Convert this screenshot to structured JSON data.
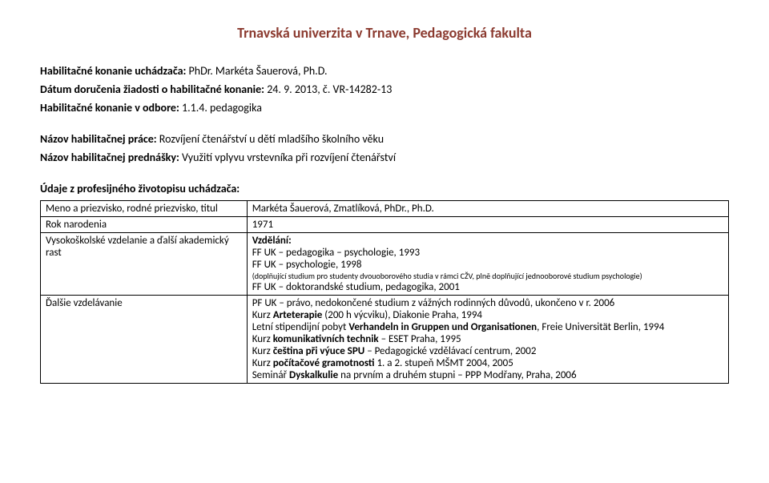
{
  "title": "Trnavská univerzita v Trnave, Pedagogická fakulta",
  "lines": {
    "l1_label": "Habilitačné konanie uchádzača:",
    "l1_value": " PhDr. Markéta Šauerová, Ph.D.",
    "l2_label": "Dátum doručenia žiadosti o habilitačné konanie:",
    "l2_value": " 24. 9. 2013, č. VR-14282-13",
    "l3_label": "Habilitačné konanie v odbore:",
    "l3_value": " 1.1.4. pedagogika",
    "l4_label": "Názov habilitačnej práce:",
    "l4_value": " Rozvíjení čtenářství u dětí mladšího školního věku",
    "l5_label": "Názov habilitačnej prednášky:",
    "l5_value": " Využití vplyvu vrstevníka při rozvíjení čtenářství",
    "l6_label": "Údaje z profesijného životopisu uchádzača:"
  },
  "table": {
    "rows": [
      {
        "label": "Meno a priezvisko, rodné priezvisko, titul",
        "value_lines": [
          {
            "text": "Markéta Šauerová, Zmatlíková, PhDr., Ph.D."
          }
        ]
      },
      {
        "label": "Rok narodenia",
        "value_lines": [
          {
            "text": "1971"
          }
        ]
      },
      {
        "label": "Vysokoškolské vzdelanie a ďalší akademický rast",
        "value_lines": [
          {
            "text": "Vzdělání:",
            "bold": true
          },
          {
            "text": "FF UK – pedagogika – psychologie, 1993"
          },
          {
            "text": "FF UK – psychologie, 1998"
          },
          {
            "text": "(doplňující studium pro studenty dvouoborového studia v rámci CŽV, plně doplňující jednooborové studium psychologie)",
            "small": true
          },
          {
            "text": "FF UK – doktorandské studium, pedagogika, 2001"
          }
        ]
      },
      {
        "label": "Ďalšie vzdelávanie",
        "value_lines": [
          {
            "text": "PF UK – právo, nedokončené studium z vážných rodinných důvodů, ukončeno v r. 2006"
          },
          {
            "prefix": "Kurz ",
            "bold_part": "Arteterapie",
            "suffix": " (200 h výcviku), Diakonie Praha, 1994"
          },
          {
            "prefix": "Letní stipendijní pobyt ",
            "bold_part": "Verhandeln in Gruppen und Organisationen",
            "suffix": ", Freie Universität Berlin, 1994"
          },
          {
            "prefix": "Kurz ",
            "bold_part": "komunikativních technik",
            "suffix": " – ESET Praha, 1995"
          },
          {
            "prefix": "Kurz ",
            "bold_part": "čeština při výuce SPU",
            "suffix": " – Pedagogické vzdělávací centrum, 2002"
          },
          {
            "prefix": "Kurz ",
            "bold_part": "počítačové gramotnosti",
            "suffix": " 1. a 2. stupeň MŠMT 2004, 2005"
          },
          {
            "prefix": "Seminář ",
            "bold_part": "Dyskalkulie",
            "suffix": " na prvním a druhém stupni – PPP Modřany, Praha, 2006"
          }
        ]
      }
    ]
  }
}
